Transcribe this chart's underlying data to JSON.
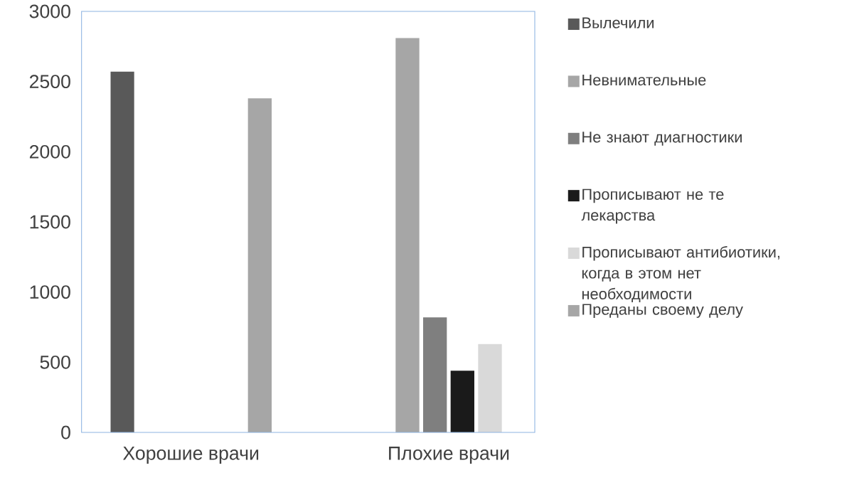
{
  "chart_data": {
    "type": "bar",
    "categories": [
      "Хорошие врачи",
      "Плохие врачи"
    ],
    "series": [
      {
        "name": "Вылечили",
        "color": "#595959",
        "values": [
          2570,
          null
        ]
      },
      {
        "name": "Невнимательные",
        "color": "#a6a6a6",
        "values": [
          null,
          2810
        ]
      },
      {
        "name": "Не знают диагностики",
        "color": "#7f7f7f",
        "values": [
          null,
          820
        ]
      },
      {
        "name": "Прописывают не те лекарства",
        "color": "#1a1a1a",
        "values": [
          null,
          440
        ]
      },
      {
        "name": "Прописывают антибиотики, когда в этом нет необходимости",
        "color": "#d9d9d9",
        "values": [
          null,
          630
        ]
      },
      {
        "name": "Преданы своему делу",
        "color": "#a6a6a6",
        "values": [
          2380,
          null
        ]
      }
    ],
    "ylim": [
      0,
      3000
    ],
    "yticks": [
      0,
      500,
      1000,
      1500,
      2000,
      2500,
      3000
    ],
    "grid": false,
    "legend": "right"
  }
}
